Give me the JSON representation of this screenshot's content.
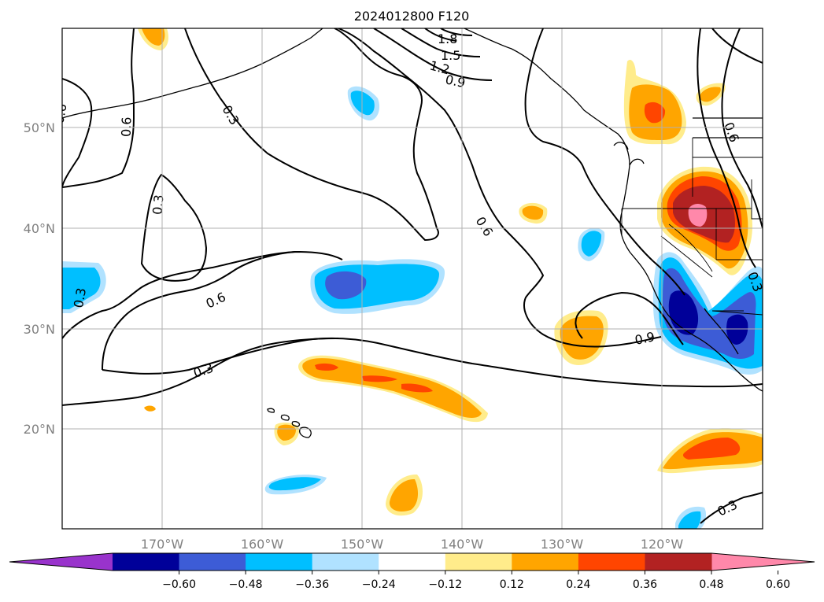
{
  "title": "2024012800 F120",
  "map": {
    "lon_ticks": [
      "170°W",
      "160°W",
      "150°W",
      "140°W",
      "130°W",
      "120°W"
    ],
    "lat_ticks": [
      "50°N",
      "40°N",
      "30°N",
      "20°N"
    ],
    "contour_labels": [
      "1.8",
      "1.5",
      "1.2",
      "0.9",
      "0.3",
      "0.6",
      "0.6",
      "0.3",
      "0.6",
      "0.3",
      "0.6",
      "0.9",
      "0.3",
      "0.3",
      "0.6",
      "0.3"
    ]
  },
  "colorbar": {
    "ticks": [
      "−0.60",
      "−0.48",
      "−0.36",
      "−0.24",
      "−0.12",
      "0.12",
      "0.24",
      "0.36",
      "0.48",
      "0.60"
    ],
    "colors": [
      "#9933cc",
      "#000099",
      "#3d5cd6",
      "#00bfff",
      "#b0e2ff",
      "#ffffff",
      "#ffec8b",
      "#ffa500",
      "#ff4500",
      "#b22222",
      "#ff88aa"
    ]
  }
}
